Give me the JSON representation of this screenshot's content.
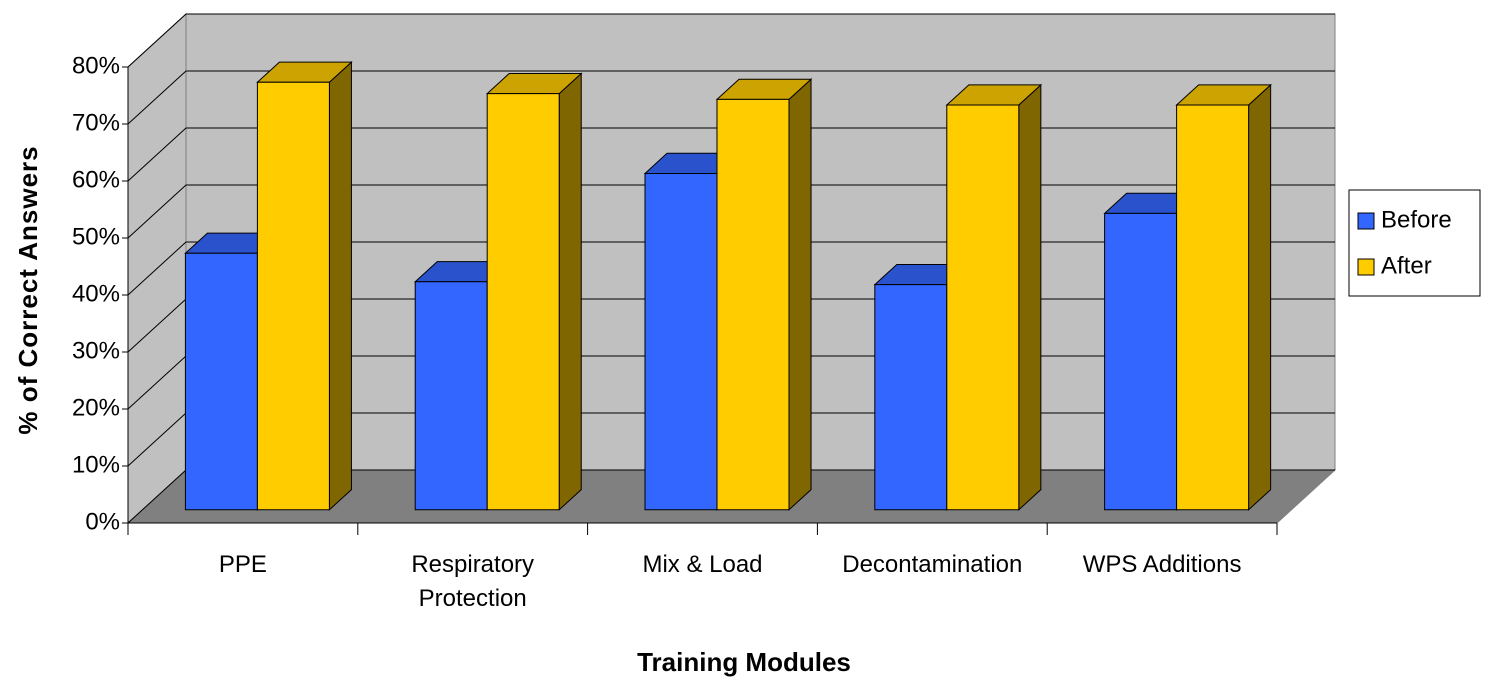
{
  "chart_data": {
    "type": "bar3d",
    "x_label": "Training Modules",
    "y_label": "% of Correct Answers",
    "categories": [
      "PPE",
      "Respiratory Protection",
      "Mix & Load",
      "Decontamination",
      "WPS Additions"
    ],
    "series": [
      {
        "name": "Before",
        "color": "#3366ff",
        "values": [
          45,
          40,
          59,
          39.5,
          52
        ]
      },
      {
        "name": "After",
        "color": "#ffcc00",
        "values": [
          75,
          73,
          72,
          71,
          71
        ]
      }
    ],
    "ylim": [
      0,
      80
    ],
    "yticks": [
      {
        "value": 0,
        "label": "0%"
      },
      {
        "value": 10,
        "label": "10%"
      },
      {
        "value": 20,
        "label": "20%"
      },
      {
        "value": 30,
        "label": "30%"
      },
      {
        "value": 40,
        "label": "40%"
      },
      {
        "value": 50,
        "label": "50%"
      },
      {
        "value": 60,
        "label": "60%"
      },
      {
        "value": 70,
        "label": "70%"
      },
      {
        "value": 80,
        "label": "80%"
      }
    ],
    "grid": true,
    "legend": "right"
  }
}
